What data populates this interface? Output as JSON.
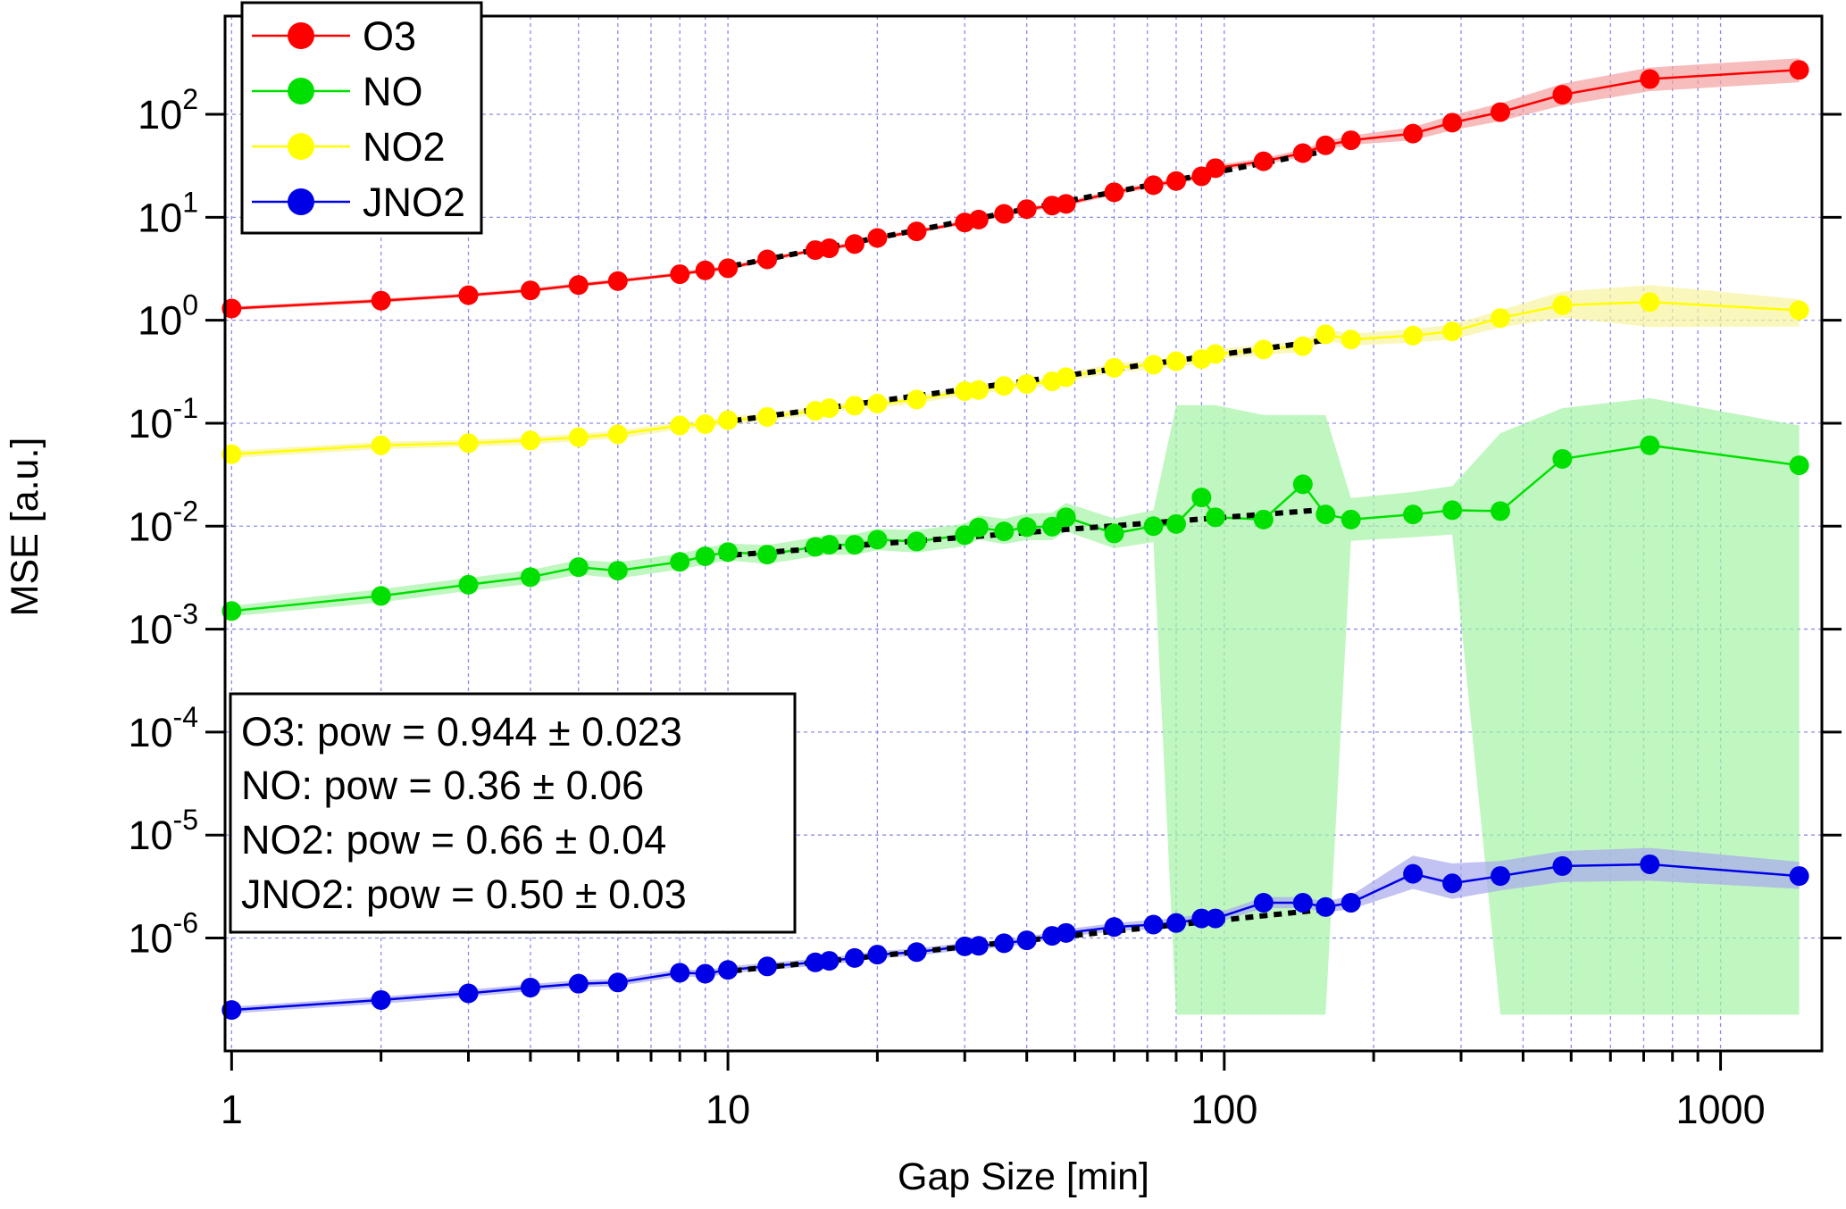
{
  "chart_data": {
    "type": "line",
    "xlabel": "Gap Size [min]",
    "ylabel": "MSE [a.u.]",
    "xscale": "log",
    "yscale": "log",
    "xlim": [
      0.97,
      1600
    ],
    "ylim": [
      8e-08,
      900
    ],
    "grid": true,
    "legend_position": "top-left",
    "x_ticks": [
      {
        "value": 1,
        "label": "1"
      },
      {
        "value": 10,
        "label": "10"
      },
      {
        "value": 100,
        "label": "100"
      },
      {
        "value": 1000,
        "label": "1000"
      }
    ],
    "y_ticks": [
      {
        "value": 1e-06,
        "base": "10",
        "exp": "-6"
      },
      {
        "value": 1e-05,
        "base": "10",
        "exp": "-5"
      },
      {
        "value": 0.0001,
        "base": "10",
        "exp": "-4"
      },
      {
        "value": 0.001,
        "base": "10",
        "exp": "-3"
      },
      {
        "value": 0.01,
        "base": "10",
        "exp": "-2"
      },
      {
        "value": 0.1,
        "base": "10",
        "exp": "-1"
      },
      {
        "value": 1,
        "base": "10",
        "exp": "0"
      },
      {
        "value": 10,
        "base": "10",
        "exp": "1"
      },
      {
        "value": 100,
        "base": "10",
        "exp": "2"
      }
    ],
    "x": [
      1,
      2,
      3,
      4,
      5,
      6,
      8,
      9,
      10,
      12,
      15,
      16,
      18,
      20,
      24,
      30,
      32,
      36,
      40,
      45,
      48,
      60,
      72,
      80,
      90,
      96,
      120,
      144,
      160,
      180,
      240,
      288,
      360,
      480,
      720,
      1440
    ],
    "series": [
      {
        "name": "O3",
        "color": "#ff0000",
        "band_color": "#f4a0a0",
        "values": [
          1.3,
          1.55,
          1.75,
          1.95,
          2.2,
          2.4,
          2.8,
          3.05,
          3.2,
          3.9,
          4.8,
          5.0,
          5.5,
          6.3,
          7.3,
          8.9,
          9.5,
          10.8,
          12.0,
          13.0,
          13.5,
          17.5,
          20.5,
          22.5,
          25.0,
          30.0,
          35.0,
          42.0,
          50.0,
          56.0,
          65.0,
          83.0,
          105.0,
          155.0,
          220.0,
          270.0
        ],
        "band_low": [
          1.25,
          1.48,
          1.68,
          1.87,
          2.1,
          2.3,
          2.7,
          2.9,
          3.05,
          3.7,
          4.6,
          4.75,
          5.25,
          6.0,
          7.0,
          8.5,
          9.0,
          10.3,
          11.4,
          12.3,
          12.8,
          16.5,
          19.3,
          21.1,
          23.4,
          28.0,
          32.5,
          38.5,
          45.5,
          50.5,
          56.0,
          70.0,
          86.0,
          122.0,
          168.0,
          205.0
        ],
        "band_high": [
          1.36,
          1.62,
          1.83,
          2.04,
          2.3,
          2.52,
          2.92,
          3.2,
          3.36,
          4.1,
          5.02,
          5.25,
          5.77,
          6.6,
          7.65,
          9.3,
          10.0,
          11.3,
          12.6,
          13.7,
          14.2,
          18.6,
          21.8,
          24.0,
          26.7,
          32.1,
          37.6,
          45.8,
          55.0,
          62.0,
          75.0,
          98.0,
          128.0,
          198.0,
          285.0,
          350.0
        ]
      },
      {
        "name": "NO",
        "color": "#00e000",
        "band_color": "#a5f3a5",
        "values": [
          0.0015,
          0.0021,
          0.0027,
          0.0032,
          0.004,
          0.0037,
          0.0045,
          0.0051,
          0.0056,
          0.0053,
          0.0063,
          0.0066,
          0.0066,
          0.0074,
          0.0071,
          0.0082,
          0.0097,
          0.0089,
          0.0098,
          0.0099,
          0.0122,
          0.0085,
          0.01,
          0.0105,
          0.019,
          0.0122,
          0.0116,
          0.0255,
          0.013,
          0.0116,
          0.013,
          0.0143,
          0.014,
          0.045,
          0.061,
          0.039
        ],
        "band_low": [
          0.00133,
          0.00182,
          0.00235,
          0.00275,
          0.0034,
          0.0031,
          0.0038,
          0.00425,
          0.00465,
          0.0043,
          0.0051,
          0.0053,
          0.00525,
          0.00585,
          0.00555,
          0.00635,
          0.0074,
          0.0067,
          0.0073,
          0.0073,
          0.0089,
          0.0061,
          0.007,
          1.8e-07,
          1.8e-07,
          1.8e-07,
          1.8e-07,
          1.8e-07,
          1.8e-07,
          0.0072,
          0.0078,
          0.0083,
          1.8e-07,
          1.8e-07,
          1.8e-07,
          1.8e-07
        ],
        "band_high": [
          0.00168,
          0.00245,
          0.00315,
          0.00375,
          0.0047,
          0.00445,
          0.0054,
          0.00615,
          0.0068,
          0.00655,
          0.0078,
          0.00825,
          0.00835,
          0.0094,
          0.00915,
          0.0106,
          0.0127,
          0.0118,
          0.0132,
          0.0135,
          0.0168,
          0.0119,
          0.0143,
          0.15,
          0.15,
          0.15,
          0.12,
          0.12,
          0.12,
          0.0188,
          0.0215,
          0.0245,
          0.08,
          0.14,
          0.175,
          0.095
        ]
      },
      {
        "name": "NO2",
        "color": "#ffff00",
        "band_color": "#f8f3a0",
        "values": [
          0.05,
          0.061,
          0.064,
          0.068,
          0.073,
          0.078,
          0.095,
          0.098,
          0.107,
          0.115,
          0.132,
          0.14,
          0.148,
          0.155,
          0.17,
          0.205,
          0.21,
          0.23,
          0.24,
          0.255,
          0.28,
          0.345,
          0.37,
          0.4,
          0.42,
          0.47,
          0.52,
          0.56,
          0.73,
          0.65,
          0.71,
          0.78,
          1.05,
          1.4,
          1.5,
          1.25
        ],
        "band_low": [
          0.046,
          0.056,
          0.059,
          0.062,
          0.067,
          0.071,
          0.087,
          0.09,
          0.098,
          0.105,
          0.12,
          0.128,
          0.135,
          0.141,
          0.155,
          0.187,
          0.191,
          0.209,
          0.218,
          0.231,
          0.253,
          0.31,
          0.332,
          0.358,
          0.375,
          0.418,
          0.46,
          0.493,
          0.64,
          0.565,
          0.605,
          0.65,
          0.85,
          1.06,
          0.86,
          0.87
        ],
        "band_high": [
          0.054,
          0.066,
          0.069,
          0.074,
          0.079,
          0.085,
          0.103,
          0.106,
          0.116,
          0.125,
          0.144,
          0.153,
          0.161,
          0.169,
          0.185,
          0.224,
          0.229,
          0.251,
          0.262,
          0.279,
          0.307,
          0.38,
          0.408,
          0.442,
          0.465,
          0.522,
          0.58,
          0.627,
          0.82,
          0.74,
          0.82,
          0.91,
          1.25,
          1.9,
          2.2,
          1.6
        ]
      },
      {
        "name": "JNO2",
        "color": "#0000e6",
        "band_color": "#a8a8ee",
        "values": [
          2e-07,
          2.5e-07,
          2.9e-07,
          3.3e-07,
          3.6e-07,
          3.7e-07,
          4.6e-07,
          4.5e-07,
          4.9e-07,
          5.3e-07,
          5.8e-07,
          6e-07,
          6.4e-07,
          6.9e-07,
          7.3e-07,
          8.3e-07,
          8.4e-07,
          8.9e-07,
          9.5e-07,
          1.05e-06,
          1.12e-06,
          1.28e-06,
          1.35e-06,
          1.4e-06,
          1.55e-06,
          1.55e-06,
          2.2e-06,
          2.2e-06,
          2e-06,
          2.2e-06,
          4.2e-06,
          3.4e-06,
          4e-06,
          5e-06,
          5.2e-06,
          4e-06
        ],
        "band_low": [
          1.85e-07,
          2.3e-07,
          2.68e-07,
          3.05e-07,
          3.32e-07,
          3.41e-07,
          4.24e-07,
          4.15e-07,
          4.52e-07,
          4.88e-07,
          5.35e-07,
          5.53e-07,
          5.9e-07,
          6.36e-07,
          6.73e-07,
          7.65e-07,
          7.74e-07,
          8.2e-07,
          8.76e-07,
          9.68e-07,
          1.03e-06,
          1.16e-06,
          1.22e-06,
          1.27e-06,
          1.4e-06,
          1.4e-06,
          1.95e-06,
          1.95e-06,
          1.78e-06,
          1.9e-06,
          3e-06,
          2.4e-06,
          2.9e-06,
          3.5e-06,
          3.6e-06,
          3e-06
        ],
        "band_high": [
          2.16e-07,
          2.7e-07,
          3.14e-07,
          3.57e-07,
          3.9e-07,
          4e-07,
          4.98e-07,
          4.87e-07,
          5.3e-07,
          5.74e-07,
          6.28e-07,
          6.5e-07,
          6.93e-07,
          7.47e-07,
          7.9e-07,
          8.98e-07,
          9.1e-07,
          9.63e-07,
          1.03e-06,
          1.14e-06,
          1.22e-06,
          1.4e-06,
          1.5e-06,
          1.56e-06,
          1.72e-06,
          1.72e-06,
          2.5e-06,
          2.5e-06,
          2.25e-06,
          2.6e-06,
          6.3e-06,
          5.3e-06,
          5.6e-06,
          7e-06,
          7.5e-06,
          5.5e-06
        ]
      }
    ],
    "fit_lines": [
      {
        "series": "O3",
        "x": [
          9,
          160
        ],
        "y": [
          3.0,
          44.0
        ]
      },
      {
        "series": "NO2",
        "x": [
          9,
          160
        ],
        "y": [
          0.097,
          0.64
        ]
      },
      {
        "series": "NO",
        "x": [
          9,
          160
        ],
        "y": [
          0.005,
          0.0145
        ]
      },
      {
        "series": "JNO2",
        "x": [
          9,
          160
        ],
        "y": [
          4.5e-07,
          1.9e-06
        ]
      }
    ],
    "annotations": [
      "O3: pow = 0.944 ± 0.023",
      "NO: pow = 0.36 ± 0.06",
      "NO2: pow = 0.66 ± 0.04",
      "JNO2: pow = 0.50 ± 0.03"
    ]
  }
}
